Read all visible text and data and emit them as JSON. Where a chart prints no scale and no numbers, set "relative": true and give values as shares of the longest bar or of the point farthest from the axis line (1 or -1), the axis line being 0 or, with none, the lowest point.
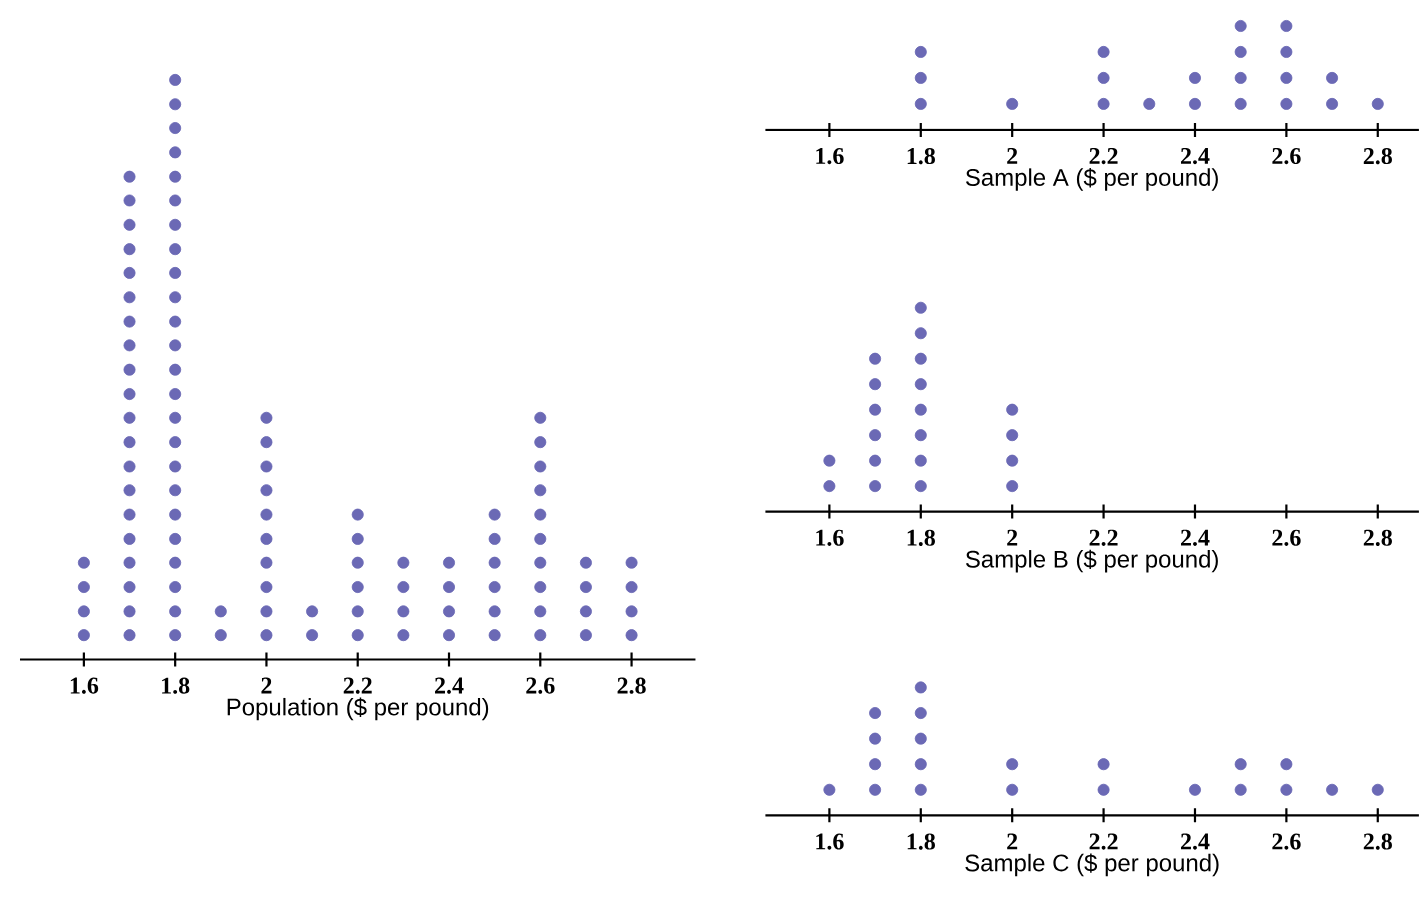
{
  "chart_data": [
    {
      "type": "scatter",
      "relative": true,
      "xlabel": "Population ($ per pound)",
      "color": "#6b69b5",
      "tick_labels": "x",
      "xlim": [
        1.46,
        2.94
      ],
      "xticks": [
        1.6,
        1.8,
        2,
        2.2,
        2.4,
        2.6,
        2.8
      ],
      "x": [
        1.6,
        1.6,
        1.6,
        1.6,
        1.7,
        1.7,
        1.7,
        1.7,
        1.7,
        1.7,
        1.7,
        1.7,
        1.7,
        1.7,
        1.7,
        1.7,
        1.7,
        1.7,
        1.7,
        1.7,
        1.7,
        1.7,
        1.7,
        1.7,
        1.8,
        1.8,
        1.8,
        1.8,
        1.8,
        1.8,
        1.8,
        1.8,
        1.8,
        1.8,
        1.8,
        1.8,
        1.8,
        1.8,
        1.8,
        1.8,
        1.8,
        1.8,
        1.8,
        1.8,
        1.8,
        1.8,
        1.8,
        1.8,
        1.9,
        1.9,
        2,
        2,
        2,
        2,
        2,
        2,
        2,
        2,
        2,
        2,
        2.1,
        2.1,
        2.2,
        2.2,
        2.2,
        2.2,
        2.2,
        2.2,
        2.3,
        2.3,
        2.3,
        2.3,
        2.4,
        2.4,
        2.4,
        2.4,
        2.5,
        2.5,
        2.5,
        2.5,
        2.5,
        2.5,
        2.6,
        2.6,
        2.6,
        2.6,
        2.6,
        2.6,
        2.6,
        2.6,
        2.6,
        2.6,
        2.7,
        2.7,
        2.7,
        2.7,
        2.8,
        2.8,
        2.8,
        2.8
      ],
      "values": [
        0.042,
        0.083,
        0.125,
        0.167,
        0.042,
        0.083,
        0.125,
        0.167,
        0.208,
        0.25,
        0.292,
        0.333,
        0.375,
        0.417,
        0.458,
        0.5,
        0.542,
        0.583,
        0.625,
        0.667,
        0.708,
        0.75,
        0.792,
        0.833,
        0.042,
        0.083,
        0.125,
        0.167,
        0.208,
        0.25,
        0.292,
        0.333,
        0.375,
        0.417,
        0.458,
        0.5,
        0.542,
        0.583,
        0.625,
        0.667,
        0.708,
        0.75,
        0.792,
        0.833,
        0.875,
        0.917,
        0.958,
        1,
        0.042,
        0.083,
        0.042,
        0.083,
        0.125,
        0.167,
        0.208,
        0.25,
        0.292,
        0.333,
        0.375,
        0.417,
        0.042,
        0.083,
        0.042,
        0.083,
        0.125,
        0.167,
        0.208,
        0.25,
        0.042,
        0.083,
        0.125,
        0.167,
        0.042,
        0.083,
        0.125,
        0.167,
        0.042,
        0.083,
        0.125,
        0.167,
        0.208,
        0.25,
        0.042,
        0.083,
        0.125,
        0.167,
        0.208,
        0.25,
        0.292,
        0.333,
        0.375,
        0.417,
        0.042,
        0.083,
        0.125,
        0.167,
        0.042,
        0.083,
        0.125,
        0.167
      ]
    },
    {
      "type": "scatter",
      "relative": true,
      "xlabel": "Sample A ($ per pound)",
      "color": "#6b69b5",
      "tick_labels": "x",
      "xlim": [
        1.46,
        2.89
      ],
      "xticks": [
        1.6,
        1.8,
        2,
        2.2,
        2.4,
        2.6,
        2.8
      ],
      "x": [
        1.8,
        1.8,
        1.8,
        2,
        2.2,
        2.2,
        2.2,
        2.3,
        2.4,
        2.4,
        2.5,
        2.5,
        2.5,
        2.5,
        2.6,
        2.6,
        2.6,
        2.6,
        2.7,
        2.7,
        2.8
      ],
      "values": [
        0.25,
        0.5,
        0.75,
        0.25,
        0.25,
        0.5,
        0.75,
        0.25,
        0.25,
        0.5,
        0.25,
        0.5,
        0.75,
        1,
        0.25,
        0.5,
        0.75,
        1,
        0.25,
        0.5,
        0.25
      ]
    },
    {
      "type": "scatter",
      "relative": true,
      "xlabel": "Sample B ($ per pound)",
      "color": "#6b69b5",
      "tick_labels": "x",
      "xlim": [
        1.46,
        2.89
      ],
      "xticks": [
        1.6,
        1.8,
        2,
        2.2,
        2.4,
        2.6,
        2.8
      ],
      "x": [
        1.6,
        1.6,
        1.7,
        1.7,
        1.7,
        1.7,
        1.7,
        1.7,
        1.8,
        1.8,
        1.8,
        1.8,
        1.8,
        1.8,
        1.8,
        1.8,
        2,
        2,
        2,
        2
      ],
      "values": [
        0.125,
        0.25,
        0.125,
        0.25,
        0.375,
        0.5,
        0.625,
        0.75,
        0.125,
        0.25,
        0.375,
        0.5,
        0.625,
        0.75,
        0.875,
        1,
        0.125,
        0.25,
        0.375,
        0.5
      ]
    },
    {
      "type": "scatter",
      "relative": true,
      "xlabel": "Sample C ($ per pound)",
      "color": "#6b69b5",
      "tick_labels": "x",
      "xlim": [
        1.46,
        2.89
      ],
      "xticks": [
        1.6,
        1.8,
        2,
        2.2,
        2.4,
        2.6,
        2.8
      ],
      "x": [
        1.6,
        1.7,
        1.7,
        1.7,
        1.7,
        1.8,
        1.8,
        1.8,
        1.8,
        1.8,
        2,
        2,
        2.2,
        2.2,
        2.4,
        2.5,
        2.5,
        2.6,
        2.6,
        2.7,
        2.8
      ],
      "values": [
        0.2,
        0.2,
        0.4,
        0.6,
        0.8,
        0.2,
        0.4,
        0.6,
        0.8,
        1,
        0.2,
        0.4,
        0.2,
        0.4,
        0.2,
        0.2,
        0.4,
        0.2,
        0.4,
        0.2,
        0.2
      ]
    }
  ]
}
